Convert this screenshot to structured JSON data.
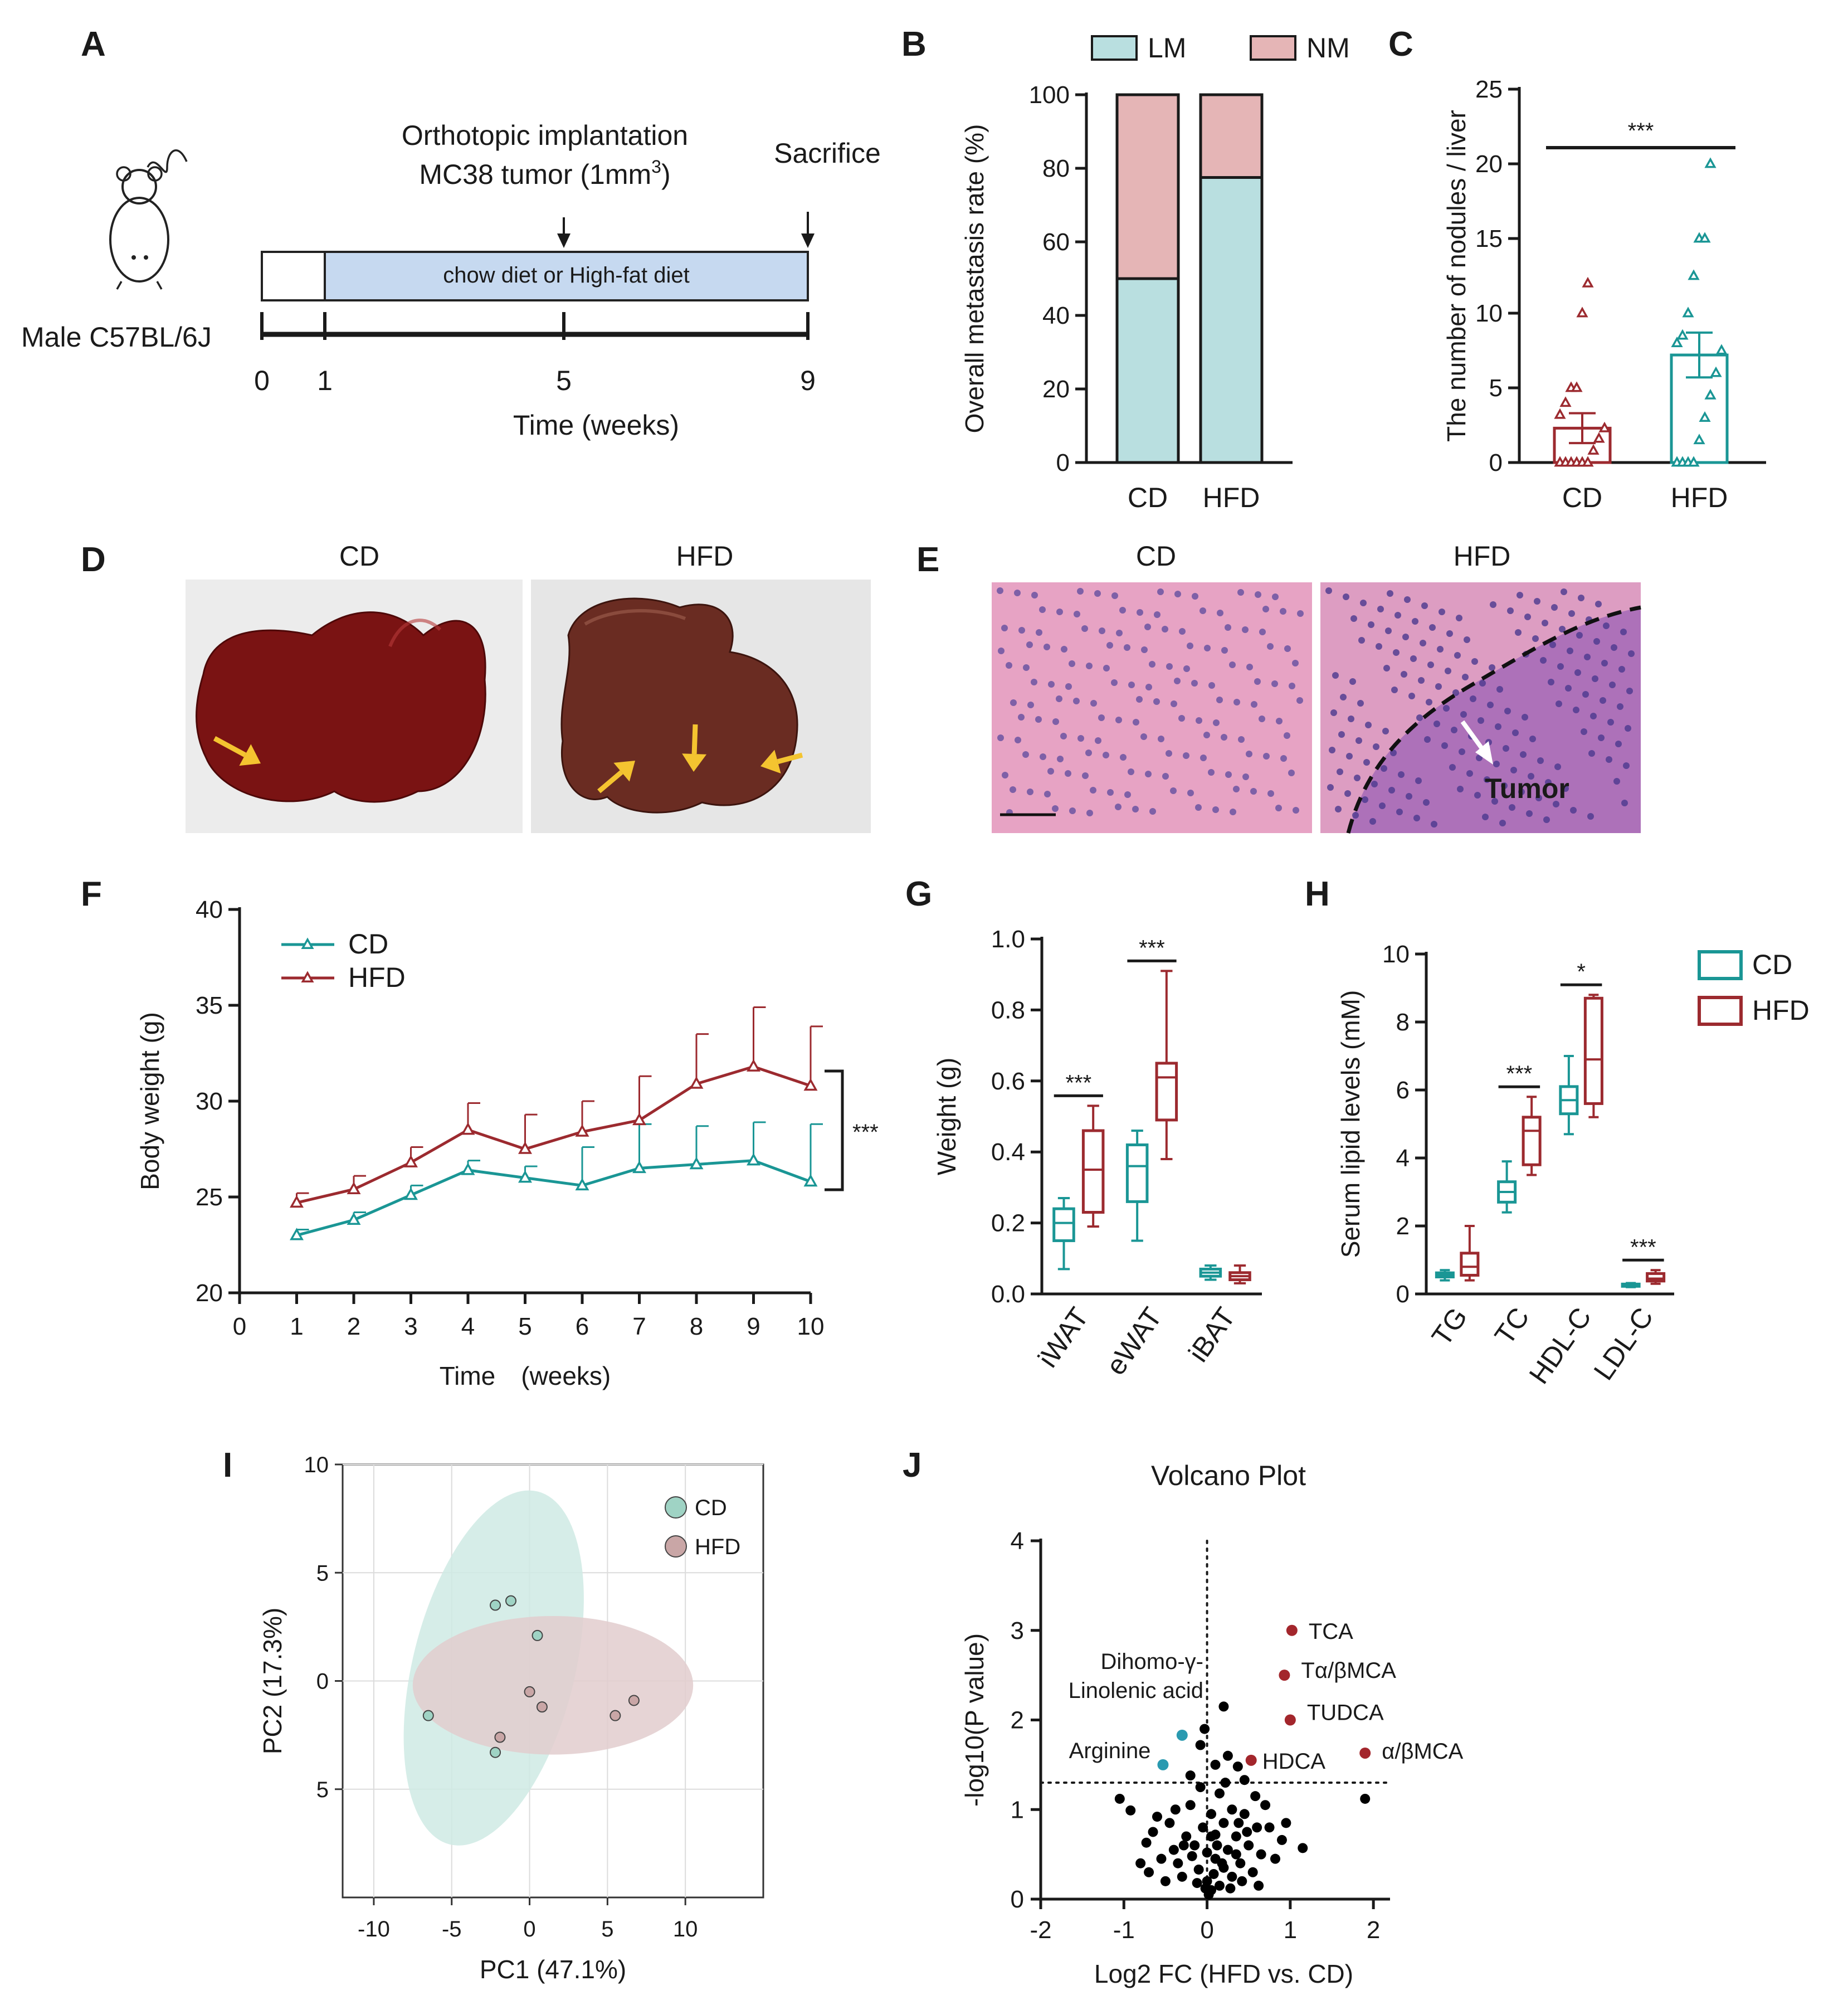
{
  "panels": {
    "A": {
      "label": "A",
      "event1_line1": "Orthotopic implantation",
      "event1_line2": "MC38 tumor (1mm",
      "event1_sup": "3",
      "event1_close": ")",
      "event2": "Sacrifice",
      "diet_bar": "chow diet or High-fat diet",
      "mouse": "Male C57BL/6J",
      "ticks": [
        "0",
        "1",
        "5",
        "9"
      ],
      "xlabel": "Time (weeks)"
    },
    "D": {
      "label": "D",
      "left": "CD",
      "right": "HFD"
    },
    "E": {
      "label": "E",
      "left": "CD",
      "right": "HFD",
      "tumor": "Tumor"
    },
    "I": {
      "label": "I"
    },
    "J": {
      "label": "J"
    }
  },
  "colors": {
    "cd": "#1a9695",
    "hfd": "#9c2a2f",
    "lm": "#b9dfe0",
    "nm": "#e5b5b6",
    "cd_pt": "#9fd3c4",
    "hfd_pt": "#c9a6a6",
    "cd_ell": "#cfeae4",
    "hfd_ell": "#e2cdce",
    "sig_blue": "#2a9ab0",
    "sig_red": "#a3262c",
    "pt_black": "#000000"
  },
  "chart_data": [
    {
      "id": "B",
      "type": "bar",
      "stacked": true,
      "panel_label": "B",
      "categories": [
        "CD",
        "HFD"
      ],
      "series": [
        {
          "name": "LM",
          "values": [
            50,
            77.5
          ]
        },
        {
          "name": "NM",
          "values": [
            50,
            22.5
          ]
        }
      ],
      "ylabel": "Overall metastasis rate (%)",
      "ylim": [
        0,
        100
      ],
      "yticks": [
        0,
        20,
        40,
        60,
        80,
        100
      ],
      "legend": "top"
    },
    {
      "id": "C",
      "type": "bar",
      "panel_label": "C",
      "categories": [
        "CD",
        "HFD"
      ],
      "values": [
        2.3,
        7.2
      ],
      "sem": [
        1.0,
        1.5
      ],
      "points": [
        [
          0,
          0,
          0,
          0,
          0,
          0,
          0.8,
          1.6,
          2.3,
          3.2,
          4,
          5,
          5,
          10,
          12
        ],
        [
          0,
          0,
          0,
          0,
          1.5,
          3,
          4.5,
          6,
          7.5,
          8,
          8.5,
          10,
          12.5,
          15,
          15,
          20
        ]
      ],
      "ylabel": "The number of nodules / liver",
      "ylim": [
        0,
        25
      ],
      "yticks": [
        0,
        5,
        10,
        15,
        20,
        25
      ],
      "significance": "***"
    },
    {
      "id": "F",
      "type": "line",
      "panel_label": "F",
      "x": [
        1,
        2,
        3,
        4,
        5,
        6,
        7,
        8,
        9,
        10
      ],
      "series": [
        {
          "name": "CD",
          "values": [
            23.0,
            23.8,
            25.1,
            26.4,
            26.0,
            25.6,
            26.5,
            26.7,
            26.9,
            25.8
          ],
          "err": [
            0.3,
            0.4,
            0.5,
            0.5,
            0.6,
            2.0,
            2.3,
            2.0,
            2.0,
            3.0
          ]
        },
        {
          "name": "HFD",
          "values": [
            24.7,
            25.4,
            26.8,
            28.5,
            27.5,
            28.4,
            29.0,
            30.9,
            31.8,
            30.8
          ],
          "err": [
            0.5,
            0.7,
            0.8,
            1.4,
            1.8,
            1.6,
            2.3,
            2.6,
            3.1,
            3.1
          ]
        }
      ],
      "xlabel": "Time　(weeks)",
      "ylabel": "Body weight (g)",
      "xlim": [
        0,
        10
      ],
      "ylim": [
        20,
        40
      ],
      "yticks": [
        20,
        25,
        30,
        35,
        40
      ],
      "xticks": [
        0,
        1,
        2,
        3,
        4,
        5,
        6,
        7,
        8,
        9,
        10
      ],
      "significance": "***",
      "legend": "top-left"
    },
    {
      "id": "G",
      "type": "box",
      "panel_label": "G",
      "categories": [
        "iWAT",
        "eWAT",
        "iBAT"
      ],
      "series": [
        {
          "name": "CD",
          "boxes": [
            [
              0.07,
              0.15,
              0.2,
              0.24,
              0.27
            ],
            [
              0.15,
              0.26,
              0.36,
              0.42,
              0.46
            ],
            [
              0.04,
              0.05,
              0.06,
              0.07,
              0.08
            ]
          ]
        },
        {
          "name": "HFD",
          "boxes": [
            [
              0.19,
              0.23,
              0.35,
              0.46,
              0.53
            ],
            [
              0.38,
              0.49,
              0.61,
              0.65,
              0.91
            ],
            [
              0.03,
              0.04,
              0.05,
              0.06,
              0.08
            ]
          ]
        }
      ],
      "ylabel": "Weight (g)",
      "ylim": [
        0,
        1.0
      ],
      "yticks": [
        "0.0",
        "0.2",
        "0.4",
        "0.6",
        "0.8",
        "1.0"
      ],
      "significance": [
        "***",
        "***",
        ""
      ]
    },
    {
      "id": "H",
      "type": "box",
      "panel_label": "H",
      "categories": [
        "TG",
        "TC",
        "HDL-C",
        "LDL-C"
      ],
      "series": [
        {
          "name": "CD",
          "boxes": [
            [
              0.4,
              0.5,
              0.55,
              0.62,
              0.7
            ],
            [
              2.4,
              2.7,
              3.0,
              3.3,
              3.9
            ],
            [
              4.7,
              5.3,
              5.7,
              6.1,
              7.0
            ],
            [
              0.2,
              0.23,
              0.26,
              0.29,
              0.32
            ]
          ]
        },
        {
          "name": "HFD",
          "boxes": [
            [
              0.4,
              0.55,
              0.8,
              1.2,
              2.0
            ],
            [
              3.5,
              3.8,
              4.8,
              5.2,
              5.8
            ],
            [
              5.2,
              5.6,
              6.9,
              8.7,
              8.8
            ],
            [
              0.3,
              0.38,
              0.45,
              0.6,
              0.7
            ]
          ]
        }
      ],
      "ylabel": "Serum lipid levels (mM)",
      "ylim": [
        0,
        10
      ],
      "yticks": [
        0,
        2,
        4,
        6,
        8,
        10
      ],
      "significance": [
        "",
        "***",
        "*",
        "***"
      ],
      "legend": "top-right"
    },
    {
      "id": "I",
      "type": "scatter",
      "panel_label": "I",
      "series": [
        {
          "name": "CD",
          "points": [
            [
              -2.2,
              3.5
            ],
            [
              -1.2,
              3.7
            ],
            [
              0.5,
              2.1
            ],
            [
              -6.5,
              -1.6
            ],
            [
              -2.2,
              -3.3
            ]
          ]
        },
        {
          "name": "HFD",
          "points": [
            [
              0,
              -0.5
            ],
            [
              0.8,
              -1.2
            ],
            [
              5.5,
              -1.6
            ],
            [
              6.7,
              -0.9
            ],
            [
              -1.9,
              -2.6
            ]
          ]
        }
      ],
      "ellipses": [
        {
          "cx": -2.3,
          "cy": 0.6,
          "rx": 5.2,
          "ry": 8.4,
          "angle": 14
        },
        {
          "cx": 1.5,
          "cy": -0.2,
          "rx": 9.0,
          "ry": 3.2,
          "angle": 0
        }
      ],
      "xlabel": "PC1 (47.1%)",
      "ylabel": "PC2 (17.3%)",
      "xlim": [
        -12,
        15
      ],
      "ylim": [
        -10,
        10
      ],
      "xticks": [
        -10,
        -5,
        0,
        5,
        10
      ],
      "yticks": [
        10,
        5,
        0,
        -5
      ],
      "ytick_labels": [
        "10",
        "5",
        "0",
        "5"
      ],
      "grid": true,
      "legend": "top-right"
    },
    {
      "id": "J",
      "type": "scatter",
      "panel_label": "J",
      "title": "Volcano Plot",
      "xlabel": "Log2 FC (HFD vs. CD)",
      "ylabel": "-log10(P value)",
      "xlim": [
        -2,
        2.2
      ],
      "ylim": [
        0,
        4
      ],
      "xticks": [
        -2,
        -1,
        0,
        1,
        2
      ],
      "yticks": [
        0,
        1,
        2,
        3,
        4
      ],
      "thresholds": {
        "x": 0,
        "y": 1.3
      },
      "labeled_points": [
        {
          "name": "TCA",
          "x": 1.02,
          "y": 3.0,
          "group": "up"
        },
        {
          "name": "Tα/βMCA",
          "x": 0.93,
          "y": 2.5,
          "group": "up"
        },
        {
          "name": "TUDCA",
          "x": 1.0,
          "y": 2.0,
          "group": "up"
        },
        {
          "name": "α/βMCA",
          "x": 1.9,
          "y": 1.63,
          "group": "up"
        },
        {
          "name": "HDCA",
          "x": 0.53,
          "y": 1.55,
          "group": "up"
        },
        {
          "name": "Dihomo-γ-",
          "name2": "Linolenic acid",
          "x": -0.3,
          "y": 1.83,
          "group": "down"
        },
        {
          "name": "Arginine",
          "x": -0.53,
          "y": 1.5,
          "group": "down"
        }
      ],
      "other_points": [
        [
          0.2,
          2.15
        ],
        [
          0.25,
          1.6
        ],
        [
          -0.03,
          1.9
        ],
        [
          -0.08,
          1.72
        ],
        [
          0.37,
          1.48
        ],
        [
          0.1,
          1.5
        ],
        [
          -0.2,
          1.38
        ],
        [
          0.45,
          1.33
        ],
        [
          1.9,
          1.12
        ],
        [
          1.15,
          0.57
        ],
        [
          0.9,
          0.66
        ],
        [
          0.75,
          0.8
        ],
        [
          -1.05,
          1.12
        ],
        [
          -0.92,
          0.99
        ],
        [
          -0.73,
          0.63
        ],
        [
          -0.6,
          0.92
        ],
        [
          -0.45,
          0.85
        ],
        [
          -0.4,
          0.55
        ],
        [
          -0.35,
          0.4
        ],
        [
          -0.3,
          0.25
        ],
        [
          -0.25,
          0.7
        ],
        [
          -0.2,
          1.05
        ],
        [
          -0.15,
          0.6
        ],
        [
          -0.1,
          0.33
        ],
        [
          -0.05,
          0.8
        ],
        [
          0.0,
          0.2
        ],
        [
          0.0,
          0.52
        ],
        [
          0.05,
          0.95
        ],
        [
          0.05,
          0.1
        ],
        [
          0.1,
          0.45
        ],
        [
          0.1,
          0.72
        ],
        [
          0.15,
          0.15
        ],
        [
          0.15,
          1.18
        ],
        [
          0.2,
          0.35
        ],
        [
          0.2,
          0.85
        ],
        [
          0.25,
          0.55
        ],
        [
          0.3,
          1.0
        ],
        [
          0.3,
          0.25
        ],
        [
          0.35,
          0.7
        ],
        [
          0.4,
          0.4
        ],
        [
          0.45,
          0.95
        ],
        [
          0.5,
          0.6
        ],
        [
          0.55,
          0.3
        ],
        [
          0.6,
          0.8
        ],
        [
          0.65,
          0.5
        ],
        [
          0.7,
          1.05
        ],
        [
          -0.55,
          0.45
        ],
        [
          -0.5,
          0.2
        ],
        [
          -0.65,
          0.75
        ],
        [
          -0.8,
          0.4
        ],
        [
          0.02,
          0.05
        ],
        [
          -0.02,
          0.12
        ],
        [
          0.08,
          0.28
        ],
        [
          -0.12,
          0.18
        ],
        [
          0.12,
          0.6
        ],
        [
          -0.18,
          0.48
        ],
        [
          0.18,
          0.4
        ],
        [
          0.28,
          0.12
        ],
        [
          -0.28,
          0.6
        ],
        [
          0.35,
          0.5
        ],
        [
          0.42,
          0.2
        ],
        [
          0.48,
          0.75
        ],
        [
          0.58,
          1.15
        ],
        [
          -0.38,
          1.0
        ],
        [
          0.22,
          1.3
        ],
        [
          -0.08,
          1.25
        ],
        [
          0.62,
          0.15
        ],
        [
          0.82,
          0.45
        ],
        [
          -0.7,
          0.3
        ],
        [
          0.95,
          0.85
        ],
        [
          0.38,
          0.85
        ],
        [
          0.05,
          0.7
        ]
      ]
    }
  ]
}
